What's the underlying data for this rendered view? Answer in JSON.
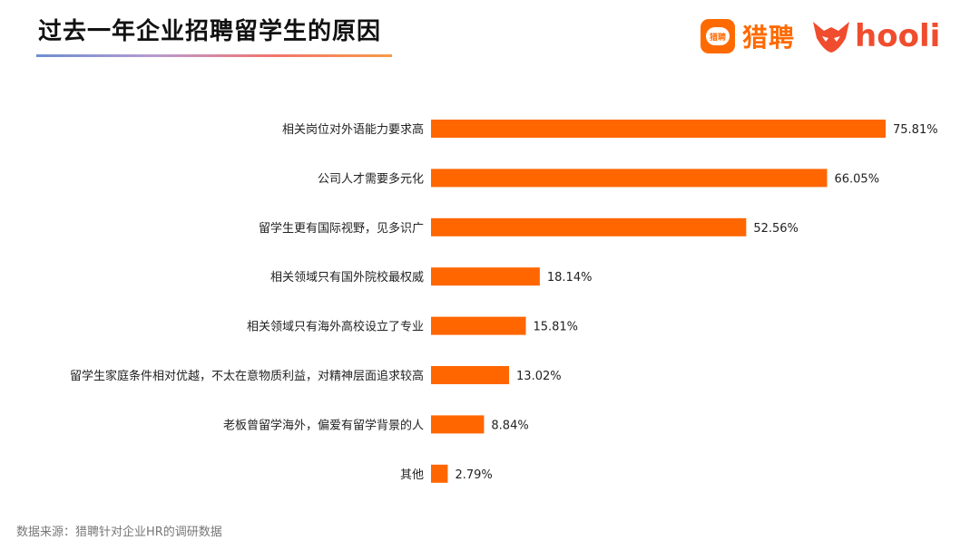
{
  "header": {
    "title": "过去一年企业招聘留学生的原因"
  },
  "logos": {
    "liepin_badge": "猎聘",
    "liepin_name": "猎聘",
    "liepin_color": "#ff6a00",
    "hooli_name": "hooli",
    "hooli_color": "#f04c2e"
  },
  "chart_data": {
    "type": "bar",
    "orientation": "horizontal",
    "title": "过去一年企业招聘留学生的原因",
    "bar_color": "#ff6600",
    "categories": [
      "相关岗位对外语能力要求高",
      "公司人才需要多元化",
      "留学生更有国际视野，见多识广",
      "相关领域只有国外院校最权威",
      "相关领域只有海外高校设立了专业",
      "留学生家庭条件相对优越，不太在意物质利益，对精神层面追求较高",
      "老板曾留学海外，偏爱有留学背景的人",
      "其他"
    ],
    "values": [
      75.81,
      66.05,
      52.56,
      18.14,
      15.81,
      13.02,
      8.84,
      2.79
    ],
    "value_labels": [
      "75.81%",
      "66.05%",
      "52.56%",
      "18.14%",
      "15.81%",
      "13.02%",
      "8.84%",
      "2.79%"
    ],
    "unit": "%",
    "xlim": [
      0,
      75.81
    ],
    "grid": false,
    "legend": "none"
  },
  "footer": {
    "source": "数据来源：猎聘针对企业HR的调研数据"
  }
}
